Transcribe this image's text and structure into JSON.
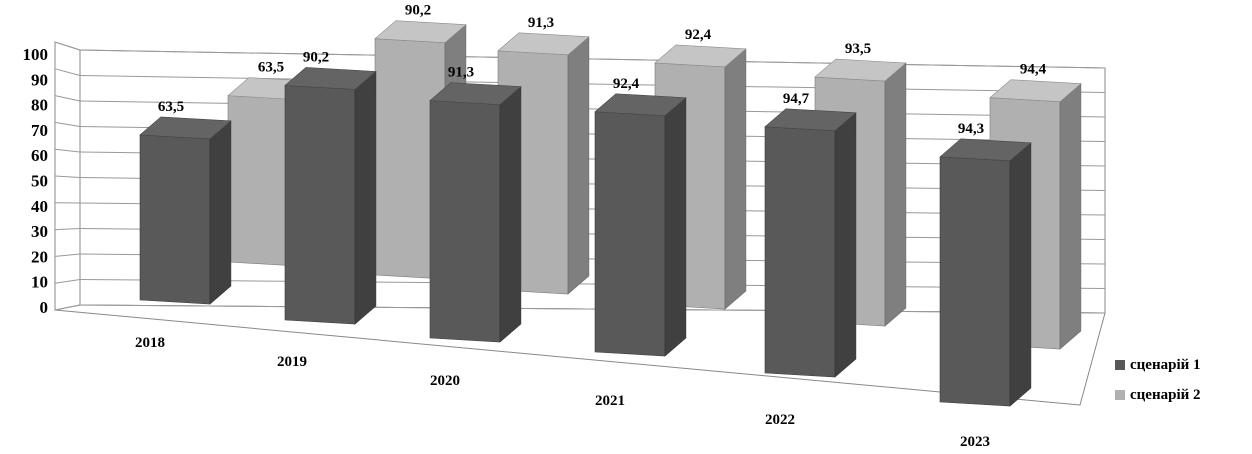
{
  "chart_data": {
    "type": "bar",
    "subtype": "3d-clustered-column",
    "categories": [
      "2018",
      "2019",
      "2020",
      "2021",
      "2022",
      "2023"
    ],
    "series": [
      {
        "name": "сценарій 1",
        "values": [
          63.5,
          90.2,
          91.3,
          92.4,
          94.7,
          94.3
        ],
        "labels": [
          "63,5",
          "90,2",
          "91,3",
          "92,4",
          "94,7",
          "94,3"
        ],
        "color": "#595959"
      },
      {
        "name": "сценарій 2",
        "values": [
          63.5,
          90.2,
          91.3,
          92.4,
          93.5,
          94.4
        ],
        "labels": [
          "63,5",
          "90,2",
          "91,3",
          "92,4",
          "93,5",
          "94,4"
        ],
        "color": "#b0b0b0"
      }
    ],
    "y_ticks": [
      "0",
      "10",
      "20",
      "30",
      "40",
      "50",
      "60",
      "70",
      "80",
      "90",
      "100"
    ],
    "ylim": [
      0,
      100
    ],
    "grid": true,
    "legend_position": "right"
  }
}
